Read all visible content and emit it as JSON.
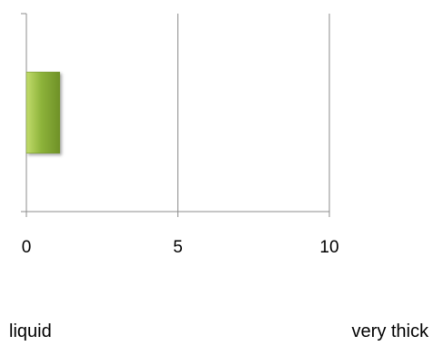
{
  "chart_data": {
    "type": "bar",
    "orientation": "horizontal",
    "categories": [
      ""
    ],
    "values": [
      1.1
    ],
    "xlim": [
      0,
      10
    ],
    "xticks": [
      0,
      5,
      10
    ],
    "grid": true,
    "bar_color": "#8db33a",
    "bar_color_light": "#c2dc6c",
    "bar_color_dark": "#6f9128"
  },
  "scale": {
    "left_label": "liquid",
    "right_label": "very thick"
  }
}
